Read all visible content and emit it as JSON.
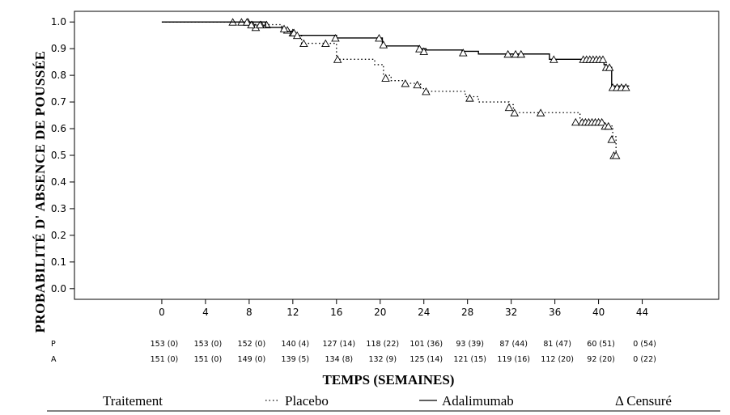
{
  "chart_data": {
    "type": "line",
    "xlabel": "TEMPS (SEMAINES)",
    "ylabel": "PROBABILITÉ D'  ABSENCE DE POUSSÉE",
    "xlim": [
      -8,
      51
    ],
    "ylim": [
      -0.04,
      1.04
    ],
    "x_ticks": [
      0,
      4,
      8,
      12,
      16,
      20,
      24,
      28,
      32,
      36,
      40,
      44
    ],
    "x_tick_labels": [
      "0",
      "4",
      "8",
      "12",
      "16",
      "20",
      "24",
      "28",
      "32",
      "36",
      "40",
      "44"
    ],
    "y_ticks": [
      0.0,
      0.1,
      0.2,
      0.3,
      0.4,
      0.5,
      0.6,
      0.7,
      0.8,
      0.9,
      1.0
    ],
    "y_tick_labels": [
      "0.0",
      "0.1",
      "0.2",
      "0.3",
      "0.4",
      "0.5",
      "0.6",
      "0.7",
      "0.8",
      "0.9",
      "1.0"
    ],
    "series": [
      {
        "name": "Placebo",
        "line_style": "dotted",
        "steps": [
          [
            0,
            1.0
          ],
          [
            8.2,
            0.99
          ],
          [
            11,
            0.97
          ],
          [
            12.2,
            0.95
          ],
          [
            12.8,
            0.92
          ],
          [
            16,
            0.86
          ],
          [
            19.5,
            0.84
          ],
          [
            20.3,
            0.8
          ],
          [
            21,
            0.78
          ],
          [
            22.3,
            0.77
          ],
          [
            23.7,
            0.75
          ],
          [
            24.2,
            0.74
          ],
          [
            27.8,
            0.72
          ],
          [
            29,
            0.7
          ],
          [
            31.8,
            0.69
          ],
          [
            32.2,
            0.66
          ],
          [
            38.3,
            0.63
          ],
          [
            40.5,
            0.61
          ],
          [
            41.3,
            0.57
          ],
          [
            41.6,
            0.5
          ]
        ],
        "end_x": 41.8,
        "censored": [
          [
            6.5,
            1.0
          ],
          [
            7.3,
            1.0
          ],
          [
            7.9,
            1.0
          ],
          [
            8.3,
            0.99
          ],
          [
            8.6,
            0.98
          ],
          [
            9.1,
            0.99
          ],
          [
            9.6,
            0.99
          ],
          [
            11.5,
            0.97
          ],
          [
            12.0,
            0.96
          ],
          [
            13.0,
            0.92
          ],
          [
            15.0,
            0.92
          ],
          [
            16.1,
            0.86
          ],
          [
            20.5,
            0.79
          ],
          [
            22.3,
            0.77
          ],
          [
            23.4,
            0.765
          ],
          [
            24.2,
            0.74
          ],
          [
            28.2,
            0.715
          ],
          [
            31.8,
            0.68
          ],
          [
            32.3,
            0.66
          ],
          [
            34.7,
            0.66
          ],
          [
            37.9,
            0.625
          ],
          [
            38.5,
            0.625
          ],
          [
            38.8,
            0.625
          ],
          [
            39.1,
            0.625
          ],
          [
            39.4,
            0.625
          ],
          [
            39.7,
            0.625
          ],
          [
            40.0,
            0.625
          ],
          [
            40.3,
            0.625
          ],
          [
            40.6,
            0.61
          ],
          [
            40.9,
            0.61
          ],
          [
            41.2,
            0.56
          ],
          [
            41.4,
            0.5
          ],
          [
            41.6,
            0.5
          ]
        ]
      },
      {
        "name": "Adalimumab",
        "line_style": "solid",
        "steps": [
          [
            0,
            1.0
          ],
          [
            9.5,
            0.98
          ],
          [
            11,
            0.965
          ],
          [
            12,
            0.95
          ],
          [
            16,
            0.94
          ],
          [
            20.2,
            0.91
          ],
          [
            23.5,
            0.9
          ],
          [
            24.2,
            0.895
          ],
          [
            27.5,
            0.89
          ],
          [
            29,
            0.88
          ],
          [
            35.5,
            0.86
          ],
          [
            36,
            0.86
          ],
          [
            40.5,
            0.84
          ],
          [
            40.7,
            0.83
          ],
          [
            41.2,
            0.76
          ]
        ],
        "end_x": 42.8,
        "censored": [
          [
            7.8,
            1.0
          ],
          [
            8.2,
            0.99
          ],
          [
            9.0,
            0.99
          ],
          [
            11.2,
            0.975
          ],
          [
            12.1,
            0.96
          ],
          [
            12.4,
            0.95
          ],
          [
            15.9,
            0.94
          ],
          [
            19.9,
            0.94
          ],
          [
            20.3,
            0.915
          ],
          [
            23.6,
            0.9
          ],
          [
            24.0,
            0.89
          ],
          [
            27.6,
            0.885
          ],
          [
            31.7,
            0.88
          ],
          [
            32.4,
            0.88
          ],
          [
            32.9,
            0.88
          ],
          [
            35.9,
            0.86
          ],
          [
            38.6,
            0.86
          ],
          [
            38.9,
            0.86
          ],
          [
            39.2,
            0.86
          ],
          [
            39.5,
            0.86
          ],
          [
            39.8,
            0.86
          ],
          [
            40.1,
            0.86
          ],
          [
            40.4,
            0.86
          ],
          [
            40.7,
            0.83
          ],
          [
            41.0,
            0.83
          ],
          [
            41.3,
            0.755
          ],
          [
            41.7,
            0.755
          ],
          [
            42.1,
            0.755
          ],
          [
            42.5,
            0.755
          ]
        ]
      }
    ],
    "risk_table": {
      "row_labels": [
        "P",
        "A"
      ],
      "times": [
        0,
        4,
        8,
        12,
        16,
        20,
        24,
        28,
        32,
        36,
        40,
        44
      ],
      "rows": [
        [
          "153 (0)",
          "153 (0)",
          "152 (0)",
          "140 (4)",
          "127 (14)",
          "118 (22)",
          "101 (36)",
          "93 (39)",
          "87 (44)",
          "81 (47)",
          "60 (51)",
          "0 (54)"
        ],
        [
          "151 (0)",
          "151 (0)",
          "149 (0)",
          "139 (5)",
          "134 (8)",
          "132 (9)",
          "125 (14)",
          "121 (15)",
          "119 (16)",
          "112 (20)",
          "92 (20)",
          "0 (22)"
        ]
      ]
    },
    "legend": {
      "position": "bottom",
      "title": "Traitement",
      "placebo": "Placebo",
      "adalimumab": "Adalimumab",
      "censored": "Δ Censuré"
    },
    "grid": false
  }
}
